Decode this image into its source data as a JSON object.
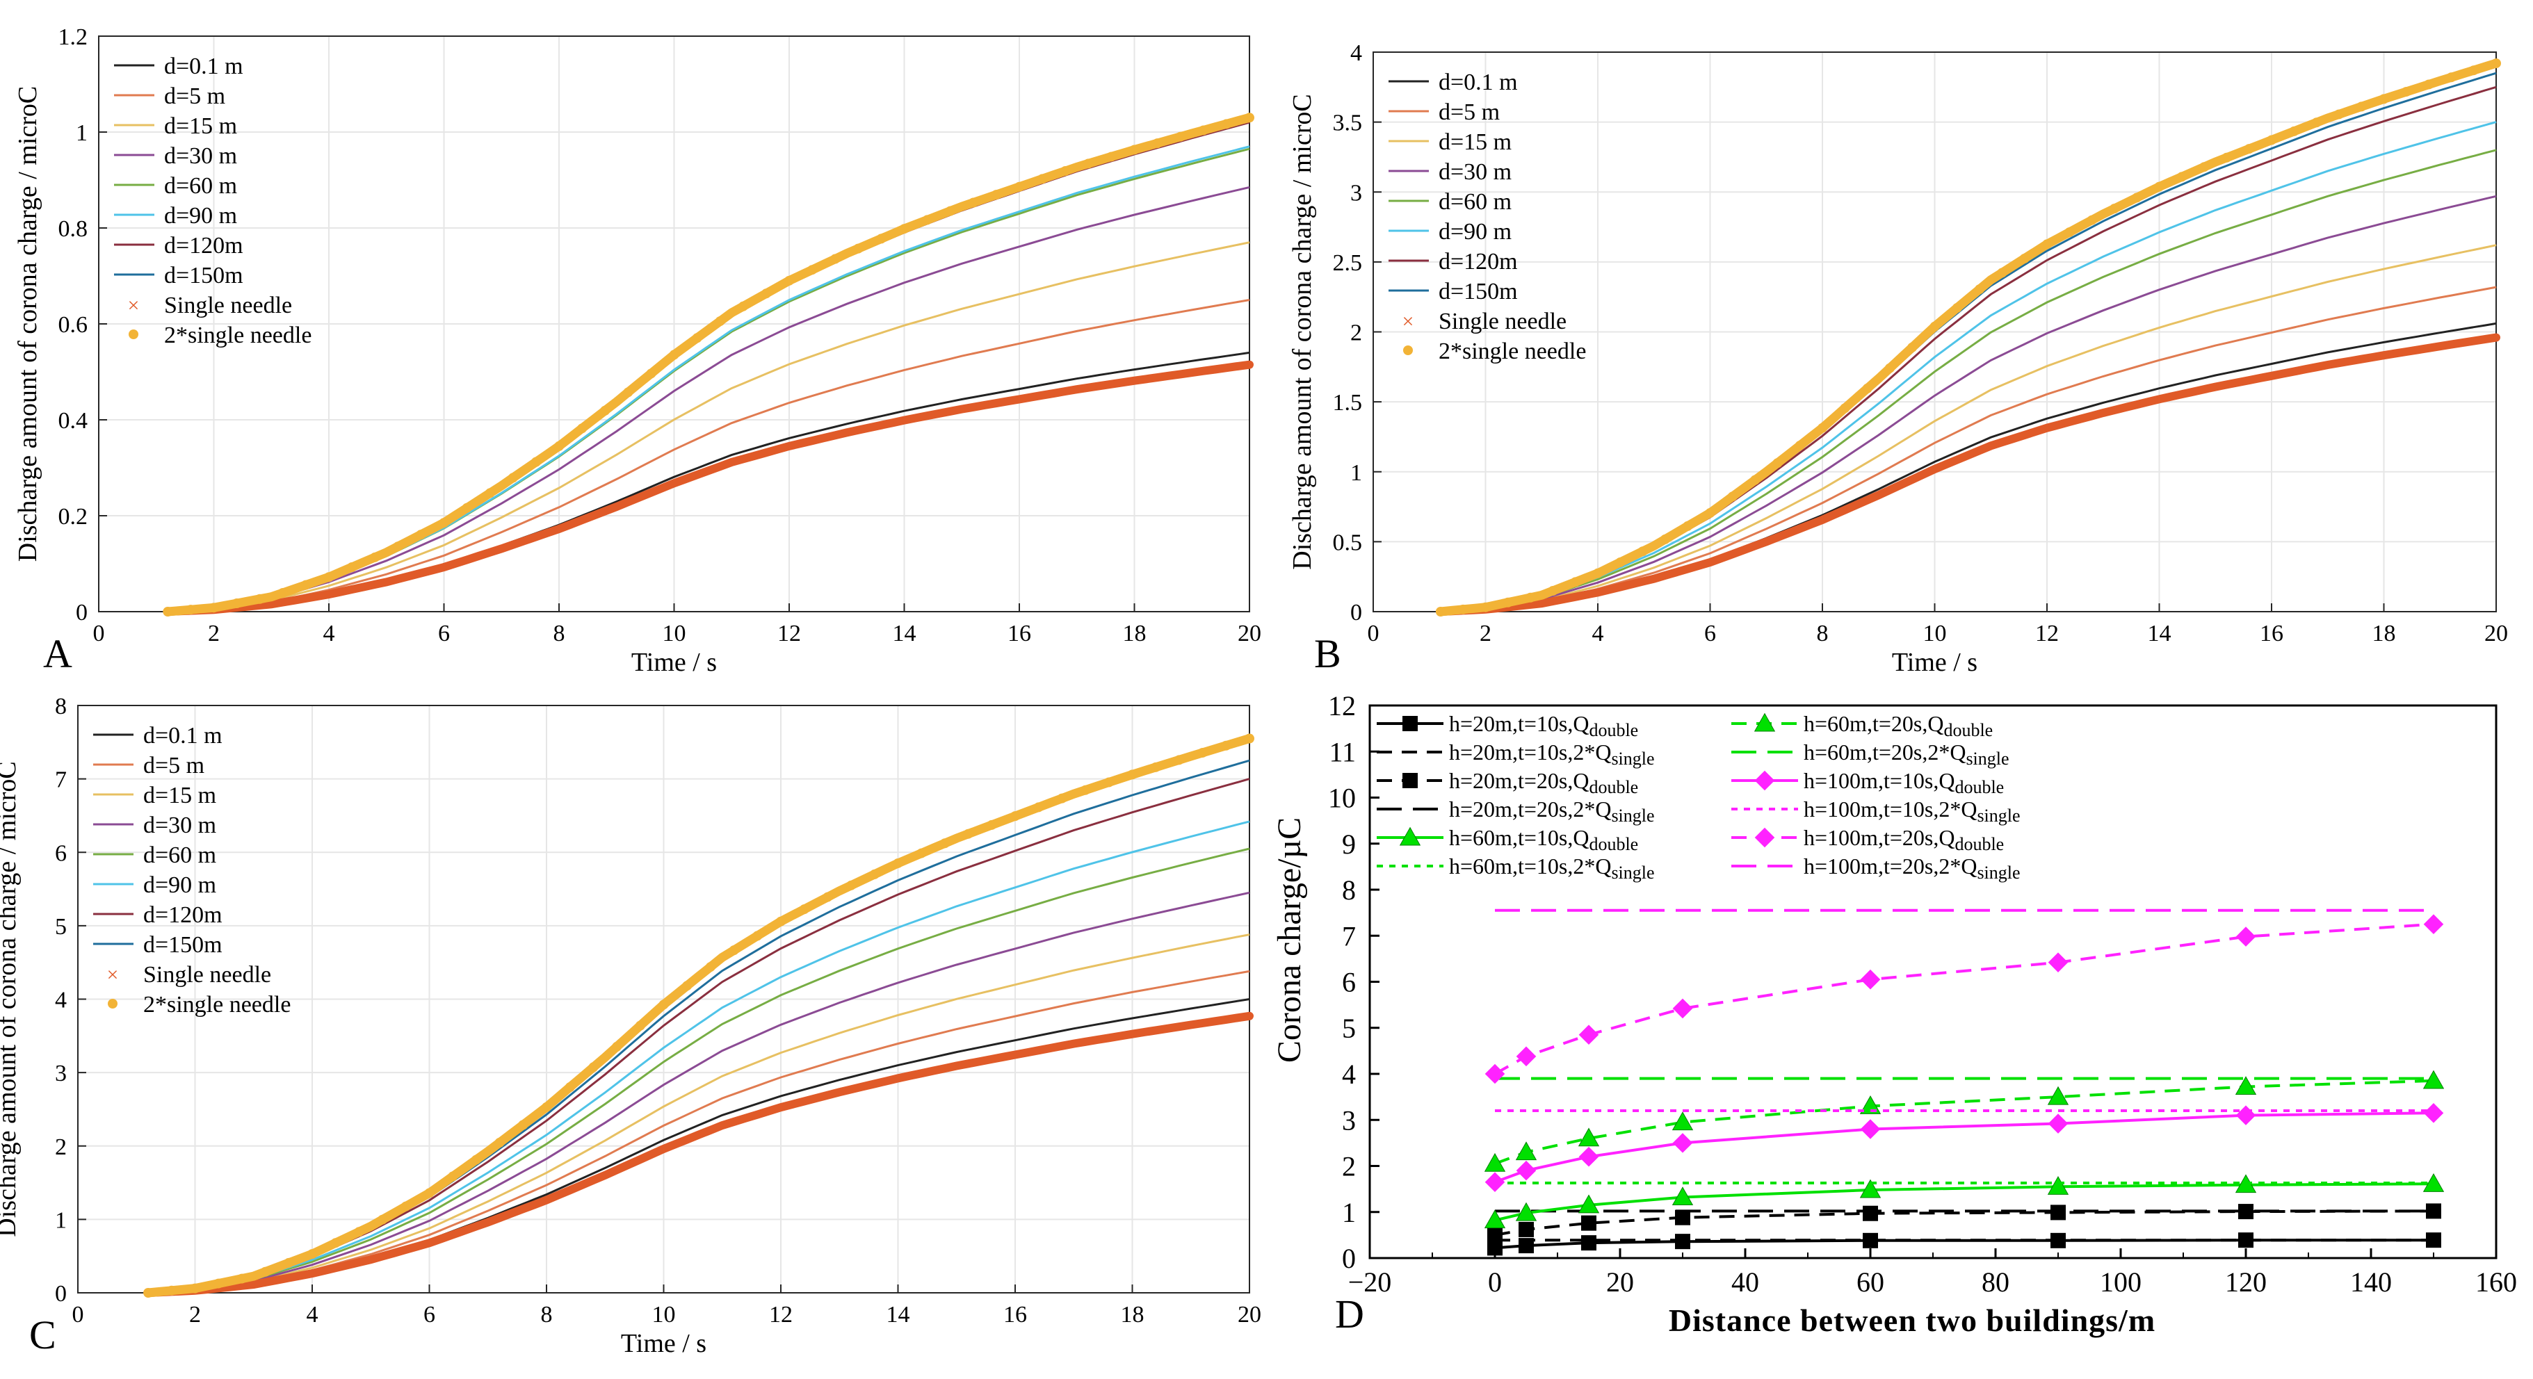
{
  "figure": {
    "panel_labels": [
      "A",
      "B",
      "C",
      "D"
    ]
  },
  "chart_data": [
    {
      "panel": "A",
      "type": "line",
      "title": "",
      "xlabel": "Time / s",
      "ylabel": "Discharge amount of corona charge / microC",
      "xlim": [
        0,
        20
      ],
      "ylim": [
        0,
        1.2
      ],
      "xticks": [
        "0",
        "2",
        "4",
        "6",
        "8",
        "10",
        "12",
        "14",
        "16",
        "18",
        "20"
      ],
      "yticks": [
        "0",
        "0.2",
        "0.4",
        "0.6",
        "0.8",
        "1",
        "1.2"
      ],
      "grid": true,
      "legend_position": "top-left",
      "series": [
        {
          "name": "d=0.1 m",
          "color": "#222222",
          "end": 0.54
        },
        {
          "name": "d=5 m",
          "color": "#e07b50",
          "end": 0.65
        },
        {
          "name": "d=15 m",
          "color": "#e7c062",
          "end": 0.77
        },
        {
          "name": "d=30 m",
          "color": "#8b4b94",
          "end": 0.885
        },
        {
          "name": "d=60 m",
          "color": "#77ad44",
          "end": 0.965
        },
        {
          "name": "d=90 m",
          "color": "#4fc3e8",
          "end": 0.97
        },
        {
          "name": "d=120m",
          "color": "#8a2f3f",
          "end": 1.02
        },
        {
          "name": "d=150m",
          "color": "#1f6e9c",
          "end": 1.03
        },
        {
          "name": "Single needle",
          "color": "#e05a28",
          "end": 0.515,
          "marker": "x"
        },
        {
          "name": "2*single needle",
          "color": "#f2b336",
          "end": 1.03,
          "marker": "o"
        }
      ]
    },
    {
      "panel": "B",
      "type": "line",
      "title": "",
      "xlabel": "Time / s",
      "ylabel": "Discharge amount of corona charge / microC",
      "xlim": [
        0,
        20
      ],
      "ylim": [
        0,
        4
      ],
      "xticks": [
        "0",
        "2",
        "4",
        "6",
        "8",
        "10",
        "12",
        "14",
        "16",
        "18",
        "20"
      ],
      "yticks": [
        "0",
        "0.5",
        "1",
        "1.5",
        "2",
        "2.5",
        "3",
        "3.5",
        "4"
      ],
      "grid": true,
      "legend_position": "top-left",
      "series": [
        {
          "name": "d=0.1 m",
          "color": "#222222",
          "end": 2.06
        },
        {
          "name": "d=5 m",
          "color": "#e07b50",
          "end": 2.32
        },
        {
          "name": "d=15 m",
          "color": "#e7c062",
          "end": 2.62
        },
        {
          "name": "d=30 m",
          "color": "#8b4b94",
          "end": 2.97
        },
        {
          "name": "d=60 m",
          "color": "#77ad44",
          "end": 3.3
        },
        {
          "name": "d=90 m",
          "color": "#4fc3e8",
          "end": 3.5
        },
        {
          "name": "d=120m",
          "color": "#8a2f3f",
          "end": 3.75
        },
        {
          "name": "d=150m",
          "color": "#1f6e9c",
          "end": 3.85
        },
        {
          "name": "Single needle",
          "color": "#e05a28",
          "end": 1.96,
          "marker": "x"
        },
        {
          "name": "2*single needle",
          "color": "#f2b336",
          "end": 3.92,
          "marker": "o"
        }
      ]
    },
    {
      "panel": "C",
      "type": "line",
      "title": "",
      "xlabel": "Time / s",
      "ylabel": "Discharge amount of corona charge / microC",
      "xlim": [
        0,
        20
      ],
      "ylim": [
        0,
        8
      ],
      "xticks": [
        "0",
        "2",
        "4",
        "6",
        "8",
        "10",
        "12",
        "14",
        "16",
        "18",
        "20"
      ],
      "yticks": [
        "0",
        "1",
        "2",
        "3",
        "4",
        "5",
        "6",
        "7",
        "8"
      ],
      "grid": true,
      "legend_position": "top-left",
      "series": [
        {
          "name": "d=0.1 m",
          "color": "#222222",
          "end": 4.0
        },
        {
          "name": "d=5 m",
          "color": "#e07b50",
          "end": 4.38
        },
        {
          "name": "d=15 m",
          "color": "#e7c062",
          "end": 4.88
        },
        {
          "name": "d=30 m",
          "color": "#8b4b94",
          "end": 5.45
        },
        {
          "name": "d=60 m",
          "color": "#77ad44",
          "end": 6.05
        },
        {
          "name": "d=90 m",
          "color": "#4fc3e8",
          "end": 6.42
        },
        {
          "name": "d=120m",
          "color": "#8a2f3f",
          "end": 7.0
        },
        {
          "name": "d=150m",
          "color": "#1f6e9c",
          "end": 7.25
        },
        {
          "name": "Single needle",
          "color": "#e05a28",
          "end": 3.77,
          "marker": "x"
        },
        {
          "name": "2*single needle",
          "color": "#f2b336",
          "end": 7.55,
          "marker": "o"
        }
      ]
    },
    {
      "panel": "D",
      "type": "line",
      "title": "",
      "xlabel": "Distance between two buildings/m",
      "ylabel": "Corona charge/µC",
      "xlim": [
        -20,
        160
      ],
      "ylim": [
        0,
        12
      ],
      "xticks": [
        "−20",
        "0",
        "20",
        "40",
        "60",
        "80",
        "100",
        "120",
        "140",
        "160"
      ],
      "yticks": [
        "0",
        "1",
        "2",
        "3",
        "4",
        "5",
        "6",
        "7",
        "8",
        "9",
        "10",
        "11",
        "12"
      ],
      "grid": false,
      "legend_position": "top",
      "x": [
        0,
        5,
        15,
        30,
        60,
        90,
        120,
        150
      ],
      "series": [
        {
          "base": "h=20m,t=10s,Q",
          "sub": "double",
          "color": "#000000",
          "style": "solid",
          "marker": "square",
          "values": [
            0.22,
            0.27,
            0.33,
            0.36,
            0.38,
            0.38,
            0.39,
            0.39
          ]
        },
        {
          "base": "h=20m,t=10s,2*Q",
          "sub": "single",
          "color": "#000000",
          "style": "dash",
          "values": [
            0.39,
            0.39,
            0.39,
            0.39,
            0.39,
            0.39,
            0.39,
            0.39
          ]
        },
        {
          "base": "h=20m,t=20s,Q",
          "sub": "double",
          "color": "#000000",
          "style": "dash",
          "marker": "square",
          "values": [
            0.5,
            0.62,
            0.76,
            0.88,
            0.97,
            0.99,
            1.01,
            1.02
          ]
        },
        {
          "base": "h=20m,t=20s,2*Q",
          "sub": "single",
          "color": "#000000",
          "style": "longdash",
          "values": [
            1.02,
            1.02,
            1.02,
            1.02,
            1.02,
            1.02,
            1.02,
            1.02
          ]
        },
        {
          "base": "h=60m,t=10s,Q",
          "sub": "double",
          "color": "#00e000",
          "style": "solid",
          "marker": "triangle",
          "values": [
            0.82,
            0.98,
            1.15,
            1.32,
            1.48,
            1.55,
            1.59,
            1.61
          ]
        },
        {
          "base": "h=60m,t=10s,2*Q",
          "sub": "single",
          "color": "#00e000",
          "style": "dot",
          "values": [
            1.63,
            1.63,
            1.63,
            1.63,
            1.63,
            1.63,
            1.63,
            1.63
          ]
        },
        {
          "base": "h=60m,t=20s,Q",
          "sub": "double",
          "color": "#00e000",
          "style": "dash",
          "marker": "triangle",
          "values": [
            2.05,
            2.3,
            2.6,
            2.95,
            3.3,
            3.5,
            3.72,
            3.85
          ]
        },
        {
          "base": "h=60m,t=20s,2*Q",
          "sub": "single",
          "color": "#00e000",
          "style": "longdash",
          "values": [
            3.9,
            3.9,
            3.9,
            3.9,
            3.9,
            3.9,
            3.9,
            3.9
          ]
        },
        {
          "base": "h=100m,t=10s,Q",
          "sub": "double",
          "color": "#ff22ff",
          "style": "solid",
          "marker": "diamond",
          "values": [
            1.65,
            1.9,
            2.2,
            2.5,
            2.8,
            2.92,
            3.1,
            3.15
          ]
        },
        {
          "base": "h=100m,t=10s,2*Q",
          "sub": "single",
          "color": "#ff22ff",
          "style": "dot",
          "values": [
            3.2,
            3.2,
            3.2,
            3.2,
            3.2,
            3.2,
            3.2,
            3.2
          ]
        },
        {
          "base": "h=100m,t=20s,Q",
          "sub": "double",
          "color": "#ff22ff",
          "style": "dash",
          "marker": "diamond",
          "values": [
            4.0,
            4.38,
            4.85,
            5.42,
            6.05,
            6.42,
            6.98,
            7.25
          ]
        },
        {
          "base": "h=100m,t=20s,2*Q",
          "sub": "single",
          "color": "#ff22ff",
          "style": "longdash",
          "values": [
            7.55,
            7.55,
            7.55,
            7.55,
            7.55,
            7.55,
            7.55,
            7.55
          ]
        }
      ]
    }
  ]
}
